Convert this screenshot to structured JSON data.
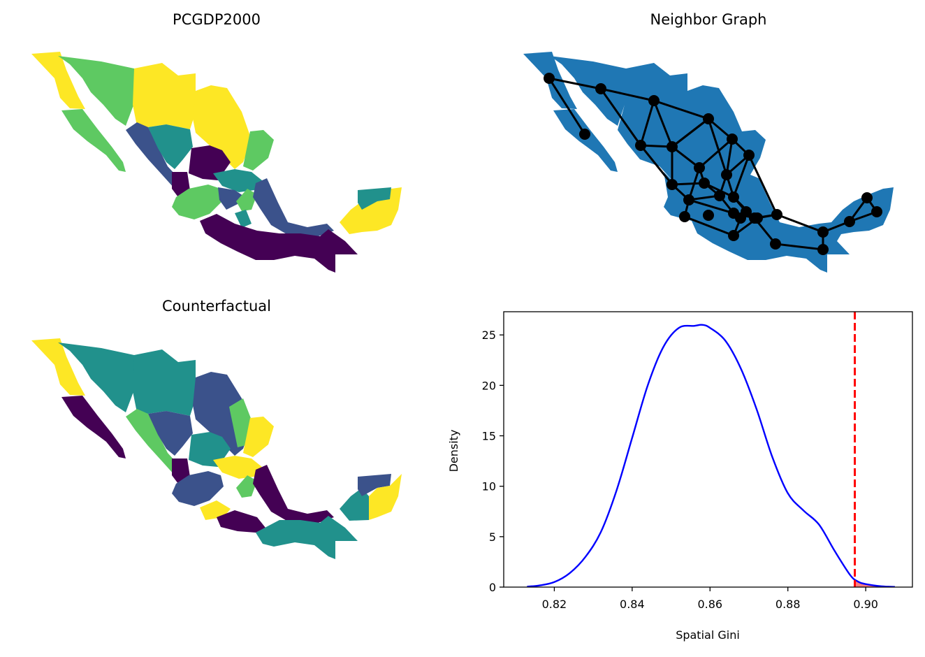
{
  "panels": {
    "top_left_title": "PCGDP2000",
    "top_right_title": "Neighbor Graph",
    "bottom_left_title": "Counterfactual"
  },
  "colors": {
    "viridis": [
      "#440154",
      "#3b528b",
      "#21918c",
      "#5ec962",
      "#fde725"
    ],
    "map_blue": "#1f77b4",
    "graph": "#000000",
    "kde_line": "#0000ff",
    "observed_line": "#ff0000",
    "tail_fill": "#ff0000"
  },
  "chart_data": {
    "type": "area",
    "x": [
      0.813,
      0.816,
      0.82,
      0.824,
      0.828,
      0.832,
      0.836,
      0.84,
      0.844,
      0.848,
      0.852,
      0.856,
      0.858,
      0.86,
      0.864,
      0.868,
      0.872,
      0.876,
      0.88,
      0.884,
      0.888,
      0.892,
      0.896,
      0.898,
      0.9,
      0.904,
      0.9075
    ],
    "y": [
      0.05,
      0.15,
      0.5,
      1.4,
      3.0,
      5.5,
      9.6,
      14.8,
      20.0,
      23.8,
      25.7,
      25.9,
      26.0,
      25.7,
      24.4,
      21.6,
      17.6,
      12.9,
      9.3,
      7.6,
      6.2,
      3.6,
      1.2,
      0.55,
      0.3,
      0.08,
      0.02
    ],
    "xlabel": "Spatial Gini",
    "ylabel": "Density",
    "xlim": [
      0.807,
      0.912
    ],
    "ylim": [
      0,
      27.3
    ],
    "xticks": [
      "0.82",
      "0.84",
      "0.86",
      "0.88",
      "0.90"
    ],
    "yticks": [
      "0",
      "5",
      "10",
      "15",
      "20",
      "25"
    ],
    "observed_value": 0.8972,
    "grid": false
  }
}
